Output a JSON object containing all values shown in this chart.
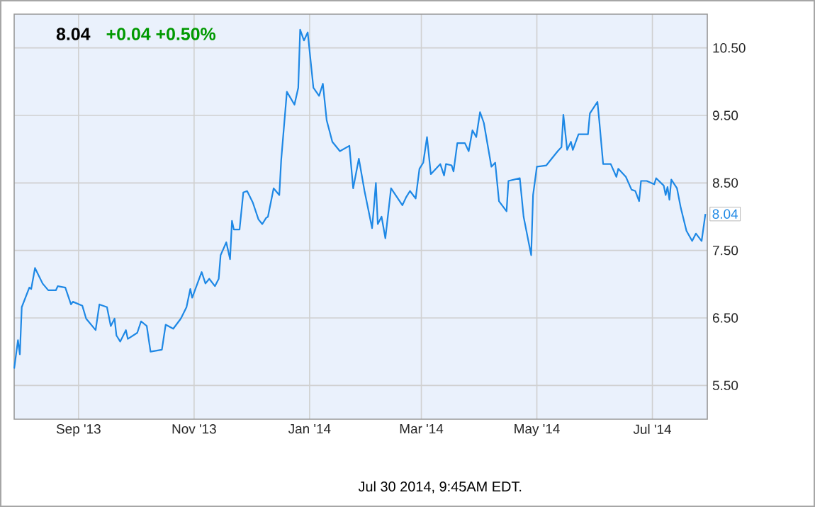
{
  "chart_data": {
    "type": "line",
    "title": "8.04",
    "subtitle": "+0.04 +0.50%",
    "annotations": [
      "Jul 30 2014, 9:45AM EDT."
    ],
    "color": "#1e88e5",
    "grid": true,
    "xlim": [
      "2013-07-29",
      "2014-07-30"
    ],
    "ylim": [
      5.0,
      11.0
    ],
    "xticks": [
      {
        "value": "2013-09-01",
        "label": "Sep '13"
      },
      {
        "value": "2013-11-01",
        "label": "Nov '13"
      },
      {
        "value": "2014-01-01",
        "label": "Jan '14"
      },
      {
        "value": "2014-03-01",
        "label": "Mar '14"
      },
      {
        "value": "2014-05-01",
        "label": "May '14"
      },
      {
        "value": "2014-07-01",
        "label": "Jul '14"
      }
    ],
    "yticks": [
      {
        "value": 5.5,
        "label": "5.50"
      },
      {
        "value": 6.5,
        "label": "6.50"
      },
      {
        "value": 7.5,
        "label": "7.50"
      },
      {
        "value": 8.5,
        "label": "8.50"
      },
      {
        "value": 9.5,
        "label": "9.50"
      },
      {
        "value": 10.5,
        "label": "10.50"
      }
    ],
    "x": [
      "2013-07-29",
      "2013-07-31",
      "2013-08-01",
      "2013-08-02",
      "2013-08-06",
      "2013-08-07",
      "2013-08-09",
      "2013-08-13",
      "2013-08-16",
      "2013-08-20",
      "2013-08-21",
      "2013-08-25",
      "2013-08-28",
      "2013-08-29",
      "2013-09-03",
      "2013-09-05",
      "2013-09-10",
      "2013-09-12",
      "2013-09-16",
      "2013-09-18",
      "2013-09-20",
      "2013-09-21",
      "2013-09-23",
      "2013-09-26",
      "2013-09-27",
      "2013-10-02",
      "2013-10-04",
      "2013-10-07",
      "2013-10-09",
      "2013-10-15",
      "2013-10-17",
      "2013-10-21",
      "2013-10-25",
      "2013-10-28",
      "2013-10-30",
      "2013-10-31",
      "2013-11-05",
      "2013-11-07",
      "2013-11-09",
      "2013-11-12",
      "2013-11-14",
      "2013-11-15",
      "2013-11-18",
      "2013-11-20",
      "2013-11-21",
      "2013-11-22",
      "2013-11-25",
      "2013-11-27",
      "2013-11-29",
      "2013-12-02",
      "2013-12-05",
      "2013-12-07",
      "2013-12-09",
      "2013-12-10",
      "2013-12-13",
      "2013-12-16",
      "2013-12-17",
      "2013-12-20",
      "2013-12-24",
      "2013-12-26",
      "2013-12-27",
      "2013-12-29",
      "2013-12-31",
      "2014-01-03",
      "2014-01-06",
      "2014-01-08",
      "2014-01-10",
      "2014-01-13",
      "2014-01-17",
      "2014-01-22",
      "2014-01-24",
      "2014-01-27",
      "2014-01-30",
      "2014-02-03",
      "2014-02-05",
      "2014-02-06",
      "2014-02-08",
      "2014-02-10",
      "2014-02-13",
      "2014-02-19",
      "2014-02-21",
      "2014-02-23",
      "2014-02-26",
      "2014-02-28",
      "2014-03-02",
      "2014-03-04",
      "2014-03-06",
      "2014-03-11",
      "2014-03-13",
      "2014-03-14",
      "2014-03-17",
      "2014-03-18",
      "2014-03-20",
      "2014-03-24",
      "2014-03-26",
      "2014-03-28",
      "2014-03-30",
      "2014-04-01",
      "2014-04-03",
      "2014-04-07",
      "2014-04-09",
      "2014-04-11",
      "2014-04-15",
      "2014-04-16",
      "2014-04-22",
      "2014-04-24",
      "2014-04-28",
      "2014-04-29",
      "2014-05-01",
      "2014-05-06",
      "2014-05-12",
      "2014-05-14",
      "2014-05-15",
      "2014-05-17",
      "2014-05-19",
      "2014-05-20",
      "2014-05-23",
      "2014-05-28",
      "2014-05-29",
      "2014-06-02",
      "2014-06-03",
      "2014-06-05",
      "2014-06-09",
      "2014-06-12",
      "2014-06-13",
      "2014-06-17",
      "2014-06-20",
      "2014-06-22",
      "2014-06-24",
      "2014-06-25",
      "2014-06-28",
      "2014-07-02",
      "2014-07-03",
      "2014-07-07",
      "2014-07-08",
      "2014-07-09",
      "2014-07-10",
      "2014-07-11",
      "2014-07-14",
      "2014-07-16",
      "2014-07-19",
      "2014-07-22",
      "2014-07-24",
      "2014-07-27",
      "2014-07-29"
    ],
    "values": [
      5.75,
      6.17,
      5.96,
      6.66,
      6.95,
      6.93,
      7.24,
      7.01,
      6.91,
      6.91,
      6.97,
      6.95,
      6.7,
      6.74,
      6.68,
      6.49,
      6.32,
      6.7,
      6.66,
      6.38,
      6.49,
      6.24,
      6.15,
      6.32,
      6.19,
      6.28,
      6.45,
      6.38,
      6.0,
      6.03,
      6.4,
      6.34,
      6.49,
      6.66,
      6.93,
      6.8,
      7.18,
      7.01,
      7.08,
      6.97,
      7.08,
      7.43,
      7.62,
      7.37,
      7.94,
      7.81,
      7.81,
      8.36,
      8.38,
      8.21,
      7.96,
      7.89,
      7.98,
      8.0,
      8.42,
      8.32,
      8.84,
      9.85,
      9.66,
      9.91,
      10.77,
      10.61,
      10.73,
      9.91,
      9.79,
      9.97,
      9.43,
      9.11,
      8.97,
      9.05,
      8.42,
      8.86,
      8.38,
      7.83,
      8.5,
      7.89,
      8.0,
      7.68,
      8.42,
      8.17,
      8.29,
      8.38,
      8.27,
      8.71,
      8.8,
      9.18,
      8.63,
      8.78,
      8.61,
      8.78,
      8.76,
      8.67,
      9.09,
      9.09,
      8.97,
      9.28,
      9.18,
      9.55,
      9.39,
      8.74,
      8.8,
      8.23,
      8.08,
      8.53,
      8.57,
      8.0,
      7.43,
      8.32,
      8.74,
      8.76,
      8.97,
      9.03,
      9.51,
      8.99,
      9.11,
      8.99,
      9.22,
      9.22,
      9.53,
      9.7,
      9.41,
      8.78,
      8.78,
      8.59,
      8.71,
      8.59,
      8.4,
      8.38,
      8.23,
      8.53,
      8.53,
      8.48,
      8.57,
      8.46,
      8.32,
      8.44,
      8.25,
      8.55,
      8.42,
      8.13,
      7.79,
      7.64,
      7.75,
      7.64,
      8.04
    ],
    "value_labels": [
      null,
      null,
      null,
      null,
      null,
      null,
      null,
      null,
      null,
      null,
      null,
      null,
      null,
      null,
      null,
      null,
      null,
      null,
      null,
      null,
      null,
      null,
      null,
      null,
      null,
      null,
      null,
      null,
      null,
      null,
      null,
      null,
      null,
      null,
      null,
      null,
      null,
      null,
      null,
      null,
      null,
      null,
      null,
      null,
      null,
      null,
      null,
      null,
      null,
      null,
      null,
      null,
      null,
      null,
      null,
      null,
      null,
      null,
      null,
      null,
      null,
      null,
      null,
      null,
      null,
      null,
      null,
      null,
      null,
      null,
      null,
      null,
      null,
      null,
      null,
      null,
      null,
      null,
      null,
      null,
      null,
      null,
      null,
      null,
      null,
      null,
      null,
      null,
      null,
      null,
      null,
      null,
      null,
      null,
      null,
      null,
      null,
      null,
      null,
      null,
      null,
      null,
      null,
      null,
      null,
      null,
      null,
      null,
      null,
      null,
      null,
      null,
      null,
      null,
      null,
      null,
      null,
      null,
      null,
      null,
      null,
      null,
      null,
      null,
      null,
      null,
      null,
      null,
      null,
      null,
      null,
      null,
      null,
      null,
      null,
      null,
      null,
      null,
      null,
      null,
      null,
      null,
      null,
      null,
      "8.04"
    ]
  }
}
